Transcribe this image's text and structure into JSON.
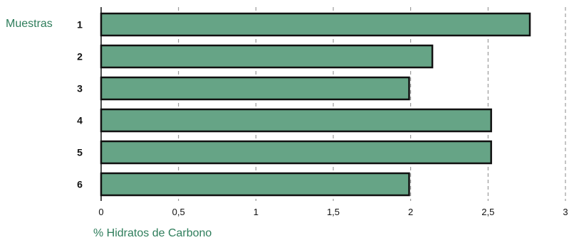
{
  "chart_data": {
    "type": "bar",
    "orientation": "horizontal",
    "category_title": "Muestras",
    "categories": [
      "1",
      "2",
      "3",
      "4",
      "5",
      "6"
    ],
    "values": [
      2.77,
      2.14,
      1.99,
      2.52,
      2.52,
      1.99
    ],
    "xlabel": "% Hidratos de Carbono",
    "xlim": [
      0,
      3
    ],
    "x_ticks": [
      "0",
      "0,5",
      "1",
      "1,5",
      "2",
      "2,5",
      "3"
    ],
    "grid": "vertical dashed",
    "colors": {
      "bar_fill": "#66a486",
      "bar_stroke": "#111111",
      "title_text": "#2e7d5b",
      "grid": "#888888"
    }
  }
}
